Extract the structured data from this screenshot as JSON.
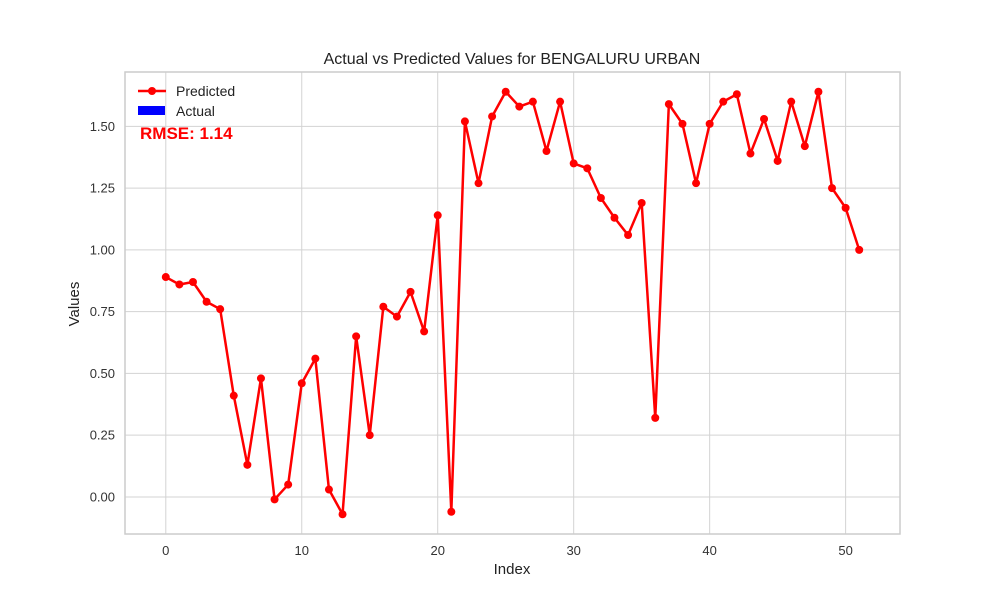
{
  "chart_data": {
    "type": "line",
    "title": "Actual vs Predicted Values for BENGALURU URBAN",
    "xlabel": "Index",
    "ylabel": "Values",
    "xlim": [
      -3,
      54
    ],
    "ylim": [
      -0.15,
      1.72
    ],
    "xticks": [
      0,
      10,
      20,
      30,
      40,
      50
    ],
    "yticks": [
      0.0,
      0.25,
      0.5,
      0.75,
      1.0,
      1.25,
      1.5
    ],
    "xtick_labels": [
      "0",
      "10",
      "20",
      "30",
      "40",
      "50"
    ],
    "ytick_labels": [
      "0.00",
      "0.25",
      "0.50",
      "0.75",
      "1.00",
      "1.25",
      "1.50"
    ],
    "grid": true,
    "legend_position": "top-left",
    "series": [
      {
        "name": "Predicted",
        "color": "#ff0000",
        "marker": "circle",
        "x": [
          0,
          1,
          2,
          3,
          4,
          5,
          6,
          7,
          8,
          9,
          10,
          11,
          12,
          13,
          14,
          15,
          16,
          17,
          18,
          19,
          20,
          21,
          22,
          23,
          24,
          25,
          26,
          27,
          28,
          29,
          30,
          31,
          32,
          33,
          34,
          35,
          36,
          37,
          38,
          39,
          40,
          41,
          42,
          43,
          44,
          45,
          46,
          47,
          48,
          49,
          50,
          51
        ],
        "values": [
          0.89,
          0.86,
          0.87,
          0.79,
          0.76,
          0.41,
          0.13,
          0.48,
          -0.01,
          0.05,
          0.46,
          0.56,
          0.03,
          -0.07,
          0.65,
          0.25,
          0.77,
          0.73,
          0.83,
          0.67,
          1.14,
          -0.06,
          1.52,
          1.27,
          1.54,
          1.64,
          1.58,
          1.6,
          1.4,
          1.6,
          1.35,
          1.33,
          1.21,
          1.13,
          1.06,
          1.19,
          0.32,
          1.59,
          1.51,
          1.27,
          1.51,
          1.6,
          1.63,
          1.39,
          1.53,
          1.36,
          1.6,
          1.42,
          1.64,
          1.25,
          1.17,
          1.0
        ]
      },
      {
        "name": "Actual",
        "color": "#0000ff",
        "x": [],
        "values": []
      }
    ],
    "annotation": {
      "text": "RMSE: 1.14",
      "color": "#ff0000"
    }
  }
}
